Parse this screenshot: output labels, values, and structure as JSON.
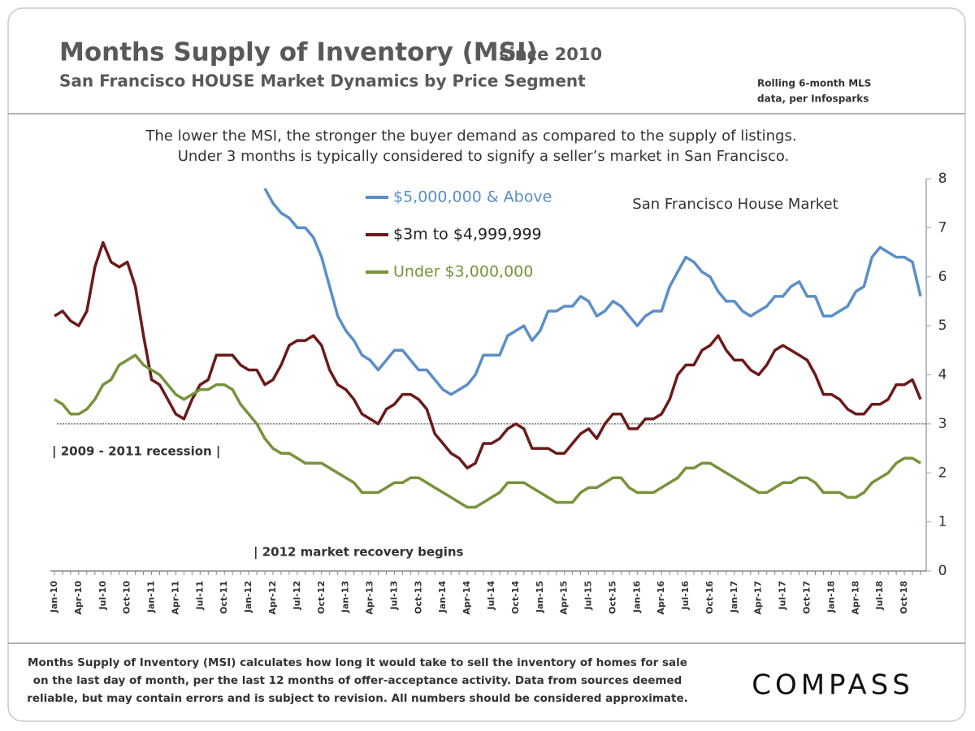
{
  "chart_data": {
    "type": "line",
    "title": "Months Supply of Inventory (MSI)",
    "title_suffix": "since 2010",
    "subtitle": "San Francisco HOUSE Market Dynamics by Price Segment",
    "source_note": [
      "Rolling 6-month  MLS",
      "data,  per Infosparks"
    ],
    "description": [
      "The lower the MSI, the stronger the buyer demand as compared to the supply of listings.",
      "Under 3 months is typically considered to signify a seller’s market in San Francisco."
    ],
    "inset_title": "San Francisco House Market",
    "annotations": [
      "| 2009 - 2011 recession |",
      "| 2012 market recovery begins"
    ],
    "footer": [
      "Months Supply of Inventory (MSI) calculates how long it would take to sell the inventory of homes for sale",
      "on the last day of month, per the last 12 months of offer-acceptance activity. Data from sources deemed",
      "reliable, but may contain errors and is subject to revision. All numbers should be considered approximate."
    ],
    "logo": "COMPASS",
    "reference_value": 3,
    "categories": [
      "Jan-10",
      null,
      null,
      "Apr-10",
      null,
      null,
      "Jul-10",
      null,
      null,
      "Oct-10",
      null,
      null,
      "Jan-11",
      null,
      null,
      "Apr-11",
      null,
      null,
      "Jul-11",
      null,
      null,
      "Oct-11",
      null,
      null,
      "Jan-12",
      null,
      null,
      "Apr-12",
      null,
      null,
      "Jul-12",
      null,
      null,
      "Oct-12",
      null,
      null,
      "Jan-13",
      null,
      null,
      "Apr-13",
      null,
      null,
      "Jul-13",
      null,
      null,
      "Oct-13",
      null,
      null,
      "Jan-14",
      null,
      null,
      "Apr-14",
      null,
      null,
      "Jul-14",
      null,
      null,
      "Oct-14",
      null,
      null,
      "Jan-15",
      null,
      null,
      "Apr-15",
      null,
      null,
      "Jul-15",
      null,
      null,
      "Oct-15",
      null,
      null,
      "Jan-16",
      null,
      null,
      "Apr-16",
      null,
      null,
      "Jul-16",
      null,
      null,
      "Oct-16",
      null,
      null,
      "Jan-17",
      null,
      null,
      "Apr-17",
      null,
      null,
      "Jul-17",
      null,
      null,
      "Oct-17",
      null,
      null,
      "Jan-18",
      null,
      null,
      "Apr-18",
      null,
      null,
      "Jul-18",
      null,
      null,
      "Oct-18",
      null,
      null
    ],
    "series": [
      {
        "name": "$5,000,000 & Above",
        "color": "#5b8ec9",
        "values": [
          null,
          null,
          null,
          null,
          null,
          null,
          null,
          null,
          null,
          null,
          null,
          null,
          null,
          null,
          null,
          null,
          null,
          null,
          null,
          null,
          null,
          null,
          null,
          null,
          null,
          null,
          7.8,
          7.5,
          7.3,
          7.2,
          7.0,
          7.0,
          6.8,
          6.4,
          5.8,
          5.2,
          4.9,
          4.7,
          4.4,
          4.3,
          4.1,
          4.3,
          4.5,
          4.5,
          4.3,
          4.1,
          4.1,
          3.9,
          3.7,
          3.6,
          3.7,
          3.8,
          4.0,
          4.4,
          4.4,
          4.4,
          4.8,
          4.9,
          5.0,
          4.7,
          4.9,
          5.3,
          5.3,
          5.4,
          5.4,
          5.6,
          5.5,
          5.2,
          5.3,
          5.5,
          5.4,
          5.2,
          5.0,
          5.2,
          5.3,
          5.3,
          5.8,
          6.1,
          6.4,
          6.3,
          6.1,
          6.0,
          5.7,
          5.5,
          5.5,
          5.3,
          5.2,
          5.3,
          5.4,
          5.6,
          5.6,
          5.8,
          5.9,
          5.6,
          5.6,
          5.2,
          5.2,
          5.3,
          5.4,
          5.7,
          5.8,
          6.4,
          6.6,
          6.5,
          6.4,
          6.4,
          6.3,
          5.6
        ]
      },
      {
        "name": "$3m to $4,999,999",
        "color": "#6b1a1a",
        "values": [
          5.2,
          5.3,
          5.1,
          5.0,
          5.3,
          6.2,
          6.7,
          6.3,
          6.2,
          6.3,
          5.8,
          4.8,
          3.9,
          3.8,
          3.5,
          3.2,
          3.1,
          3.5,
          3.8,
          3.9,
          4.4,
          4.4,
          4.4,
          4.2,
          4.1,
          4.1,
          3.8,
          3.9,
          4.2,
          4.6,
          4.7,
          4.7,
          4.8,
          4.6,
          4.1,
          3.8,
          3.7,
          3.5,
          3.2,
          3.1,
          3.0,
          3.3,
          3.4,
          3.6,
          3.6,
          3.5,
          3.3,
          2.8,
          2.6,
          2.4,
          2.3,
          2.1,
          2.2,
          2.6,
          2.6,
          2.7,
          2.9,
          3.0,
          2.9,
          2.5,
          2.5,
          2.5,
          2.4,
          2.4,
          2.6,
          2.8,
          2.9,
          2.7,
          3.0,
          3.2,
          3.2,
          2.9,
          2.9,
          3.1,
          3.1,
          3.2,
          3.5,
          4.0,
          4.2,
          4.2,
          4.5,
          4.6,
          4.8,
          4.5,
          4.3,
          4.3,
          4.1,
          4.0,
          4.2,
          4.5,
          4.6,
          4.5,
          4.4,
          4.3,
          4.0,
          3.6,
          3.6,
          3.5,
          3.3,
          3.2,
          3.2,
          3.4,
          3.4,
          3.5,
          3.8,
          3.8,
          3.9,
          3.5
        ]
      },
      {
        "name": "Under $3,000,000",
        "color": "#77933c",
        "values": [
          3.5,
          3.4,
          3.2,
          3.2,
          3.3,
          3.5,
          3.8,
          3.9,
          4.2,
          4.3,
          4.4,
          4.2,
          4.1,
          4.0,
          3.8,
          3.6,
          3.5,
          3.6,
          3.7,
          3.7,
          3.8,
          3.8,
          3.7,
          3.4,
          3.2,
          3.0,
          2.7,
          2.5,
          2.4,
          2.4,
          2.3,
          2.2,
          2.2,
          2.2,
          2.1,
          2.0,
          1.9,
          1.8,
          1.6,
          1.6,
          1.6,
          1.7,
          1.8,
          1.8,
          1.9,
          1.9,
          1.8,
          1.7,
          1.6,
          1.5,
          1.4,
          1.3,
          1.3,
          1.4,
          1.5,
          1.6,
          1.8,
          1.8,
          1.8,
          1.7,
          1.6,
          1.5,
          1.4,
          1.4,
          1.4,
          1.6,
          1.7,
          1.7,
          1.8,
          1.9,
          1.9,
          1.7,
          1.6,
          1.6,
          1.6,
          1.7,
          1.8,
          1.9,
          2.1,
          2.1,
          2.2,
          2.2,
          2.1,
          2.0,
          1.9,
          1.8,
          1.7,
          1.6,
          1.6,
          1.7,
          1.8,
          1.8,
          1.9,
          1.9,
          1.8,
          1.6,
          1.6,
          1.6,
          1.5,
          1.5,
          1.6,
          1.8,
          1.9,
          2.0,
          2.2,
          2.3,
          2.3,
          2.2
        ]
      }
    ],
    "ylim": [
      0,
      8
    ],
    "yticks": [
      0,
      1,
      2,
      3,
      4,
      5,
      6,
      7,
      8
    ],
    "y_axis_side": "right",
    "grid": false
  }
}
